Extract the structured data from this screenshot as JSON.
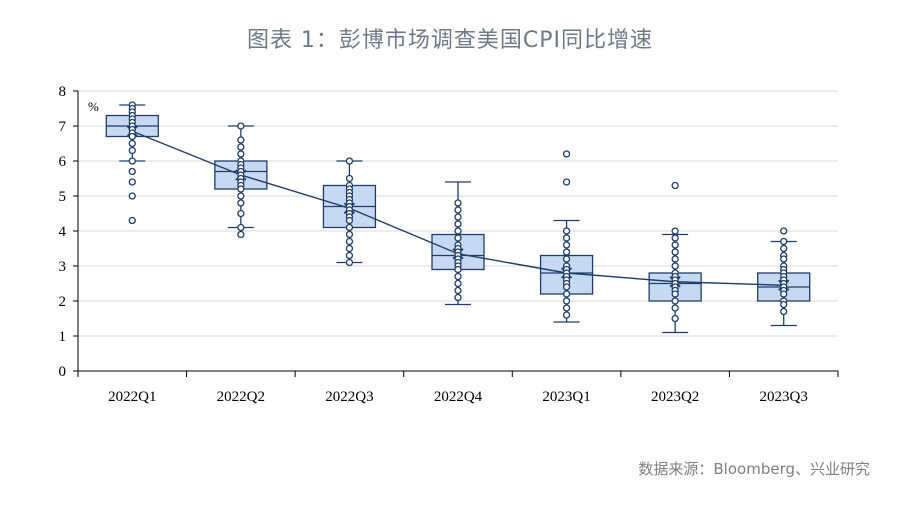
{
  "title": "图表 1：彭博市场调查美国CPI同比增速",
  "source": "数据来源：Bloomberg、兴业研究",
  "chart_data": {
    "type": "box",
    "unit": "%",
    "ylim": [
      0,
      8
    ],
    "yticks": [
      0,
      1,
      2,
      3,
      4,
      5,
      6,
      7,
      8
    ],
    "grid": true,
    "colors": {
      "box_fill": "#c6d9f1",
      "line": "#1f3d6a",
      "grid": "#d9d9d9"
    },
    "categories": [
      "2022Q1",
      "2022Q2",
      "2022Q3",
      "2022Q4",
      "2023Q1",
      "2023Q2",
      "2023Q3"
    ],
    "boxes": [
      {
        "whisker_low": 6.0,
        "q1": 6.7,
        "median": 7.0,
        "q3": 7.3,
        "whisker_high": 7.6,
        "mean": 6.85,
        "points": [
          7.6,
          7.5,
          7.4,
          7.3,
          7.2,
          7.1,
          7.0,
          6.9,
          6.8,
          6.7,
          6.5,
          6.3,
          6.0,
          5.7,
          5.4,
          5.0,
          4.3
        ]
      },
      {
        "whisker_low": 4.1,
        "q1": 5.2,
        "median": 5.7,
        "q3": 6.0,
        "whisker_high": 7.0,
        "mean": 5.6,
        "points": [
          7.0,
          6.6,
          6.4,
          6.2,
          6.0,
          5.9,
          5.8,
          5.7,
          5.6,
          5.5,
          5.4,
          5.3,
          5.2,
          5.0,
          4.8,
          4.5,
          4.1,
          3.9
        ]
      },
      {
        "whisker_low": 3.1,
        "q1": 4.1,
        "median": 4.7,
        "q3": 5.3,
        "whisker_high": 6.0,
        "mean": 4.65,
        "points": [
          6.0,
          5.5,
          5.3,
          5.2,
          5.1,
          5.0,
          4.9,
          4.8,
          4.7,
          4.6,
          4.5,
          4.4,
          4.3,
          4.1,
          3.9,
          3.7,
          3.5,
          3.3,
          3.1
        ]
      },
      {
        "whisker_low": 1.9,
        "q1": 2.9,
        "median": 3.3,
        "q3": 3.9,
        "whisker_high": 5.4,
        "mean": 3.35,
        "points": [
          4.8,
          4.6,
          4.4,
          4.2,
          4.0,
          3.8,
          3.6,
          3.5,
          3.4,
          3.3,
          3.2,
          3.1,
          3.0,
          2.9,
          2.7,
          2.5,
          2.3,
          2.1
        ]
      },
      {
        "whisker_low": 1.4,
        "q1": 2.2,
        "median": 2.8,
        "q3": 3.3,
        "whisker_high": 4.3,
        "mean": 2.8,
        "points": [
          6.2,
          5.4,
          4.0,
          3.8,
          3.6,
          3.4,
          3.2,
          3.0,
          2.9,
          2.8,
          2.7,
          2.6,
          2.5,
          2.4,
          2.2,
          2.0,
          1.8,
          1.6
        ]
      },
      {
        "whisker_low": 1.1,
        "q1": 2.0,
        "median": 2.5,
        "q3": 2.8,
        "whisker_high": 3.9,
        "mean": 2.55,
        "points": [
          5.3,
          4.0,
          3.8,
          3.6,
          3.4,
          3.2,
          3.0,
          2.8,
          2.7,
          2.6,
          2.5,
          2.4,
          2.3,
          2.2,
          2.0,
          1.8,
          1.5
        ]
      },
      {
        "whisker_low": 1.3,
        "q1": 2.0,
        "median": 2.4,
        "q3": 2.8,
        "whisker_high": 3.7,
        "mean": 2.45,
        "points": [
          4.0,
          3.7,
          3.5,
          3.3,
          3.2,
          3.0,
          2.9,
          2.8,
          2.7,
          2.6,
          2.5,
          2.4,
          2.3,
          2.2,
          2.0,
          1.9,
          1.7
        ]
      }
    ]
  }
}
